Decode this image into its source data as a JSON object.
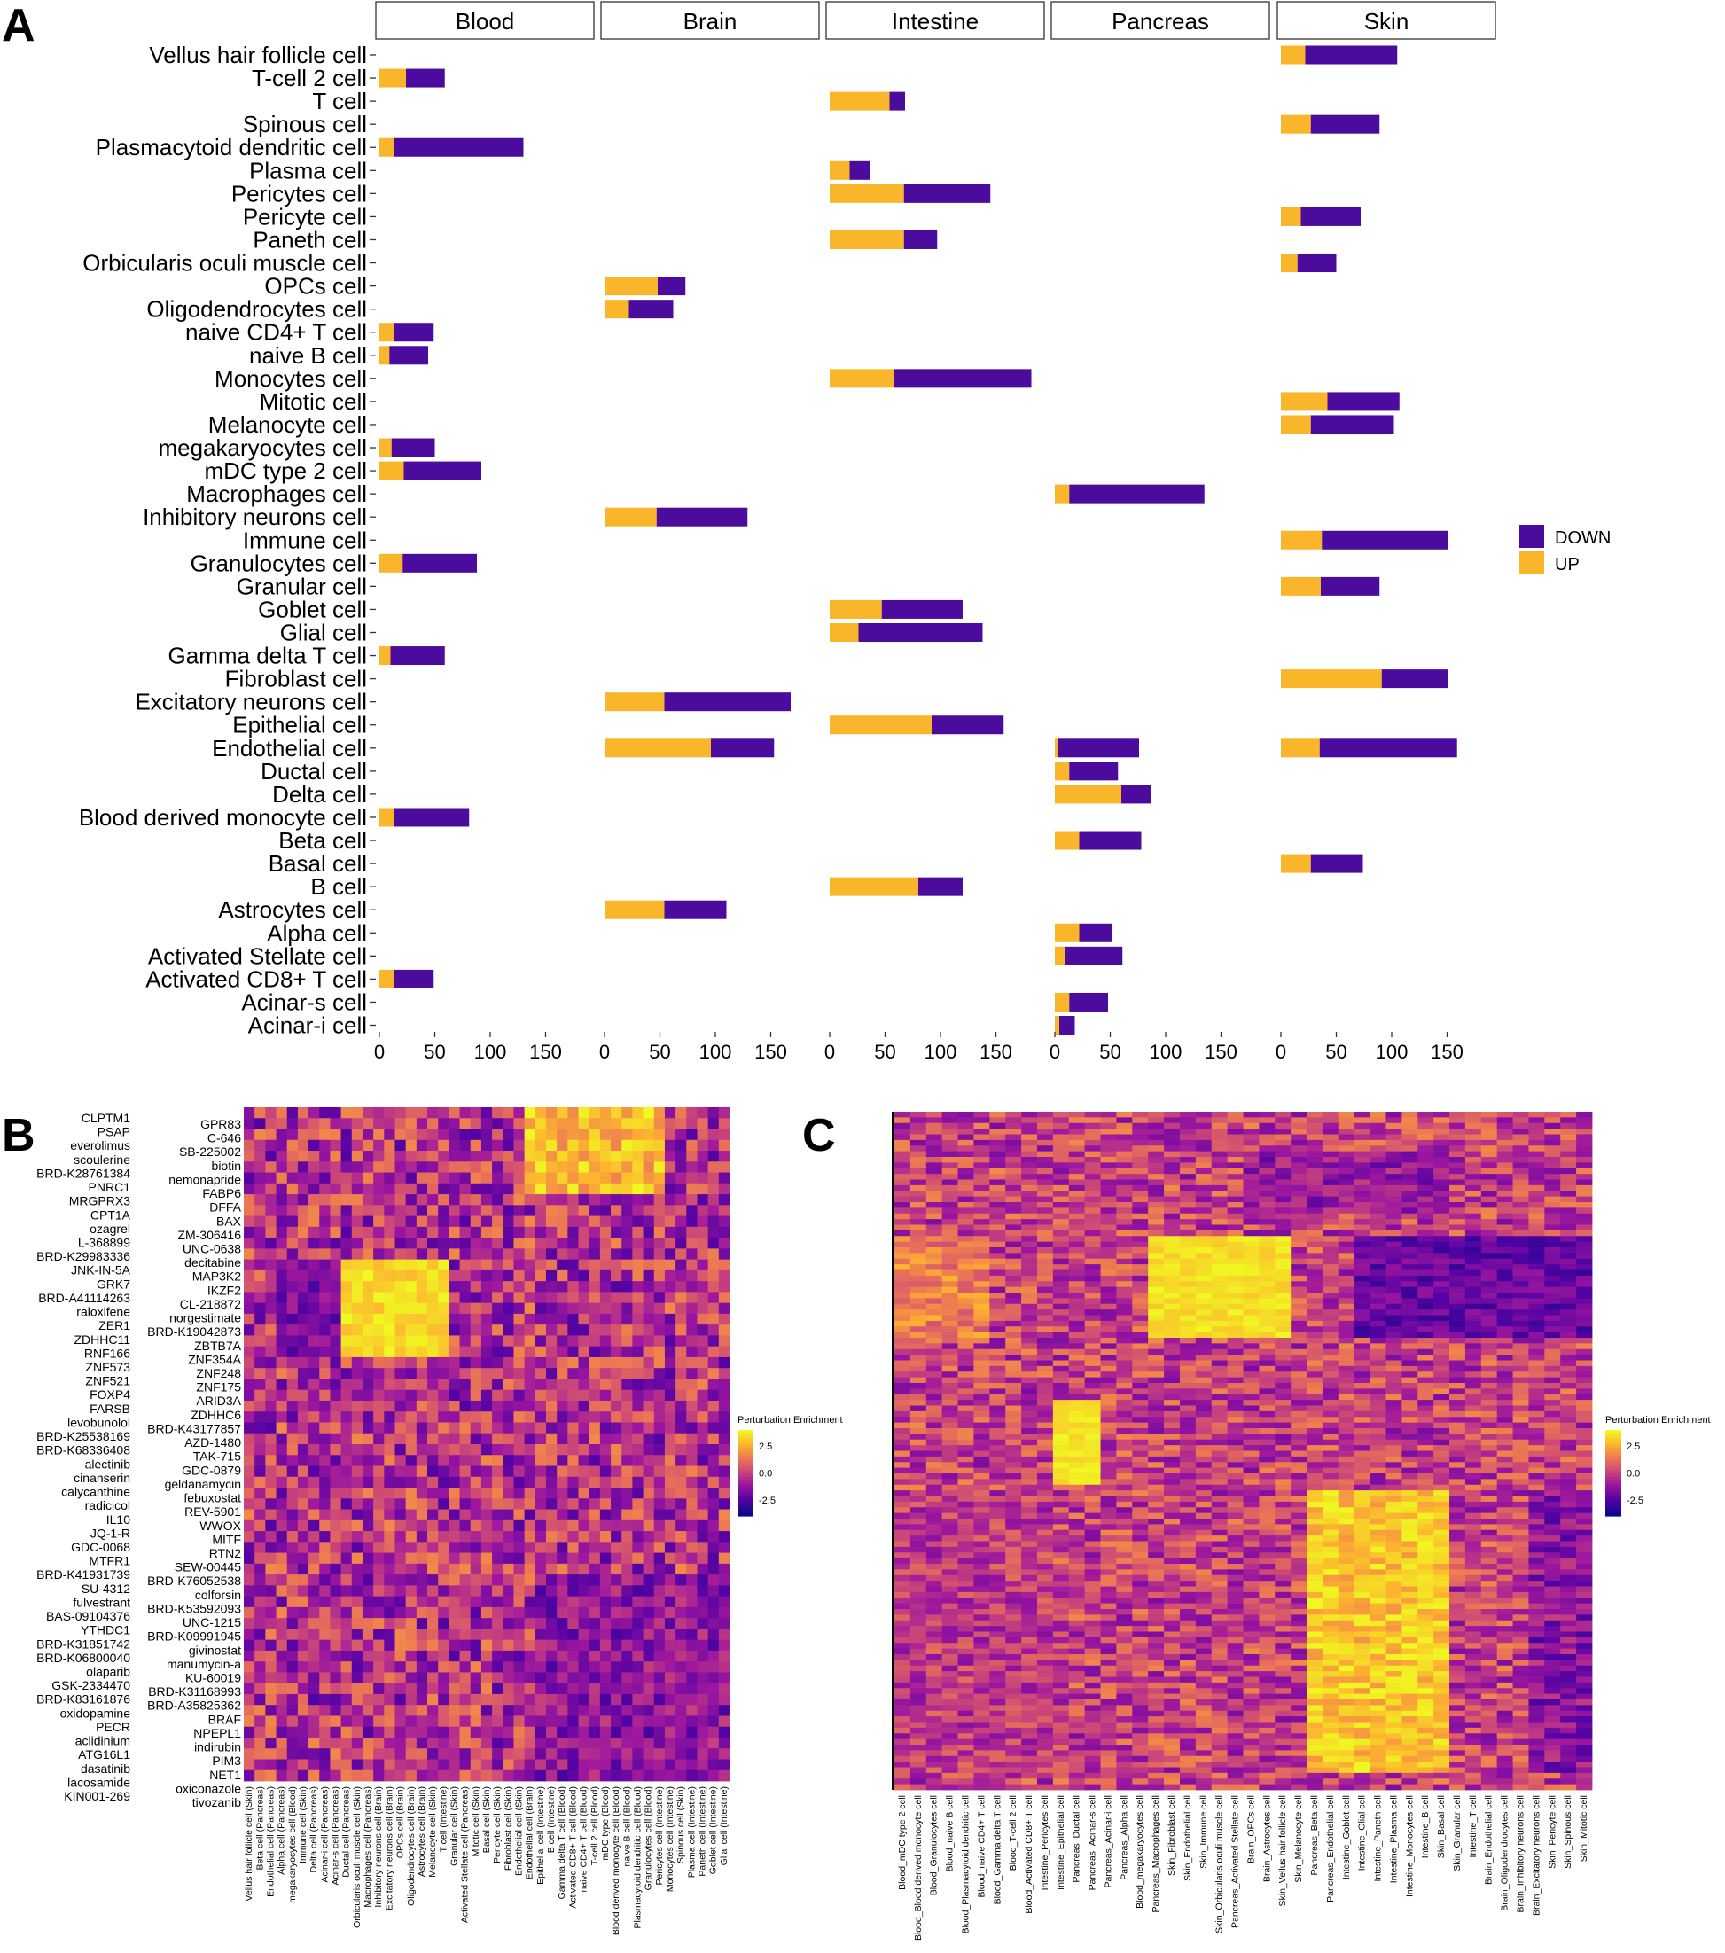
{
  "panel_letters": {
    "a": "A",
    "b": "B",
    "c": "C"
  },
  "chart_data": [
    {
      "type": "bar",
      "orientation": "horizontal",
      "stacked": true,
      "facets": [
        "Blood",
        "Brain",
        "Intestine",
        "Pancreas",
        "Skin"
      ],
      "categories": [
        "Vellus hair follicle cell",
        "T-cell 2 cell",
        "T cell",
        "Spinous cell",
        "Plasmacytoid dendritic cell",
        "Plasma cell",
        "Pericytes cell",
        "Pericyte cell",
        "Paneth cell",
        "Orbicularis oculi muscle cell",
        "OPCs cell",
        "Oligodendrocytes cell",
        "naive CD4+ T cell",
        "naive B cell",
        "Monocytes cell",
        "Mitotic cell",
        "Melanocyte cell",
        "megakaryocytes cell",
        "mDC type 2 cell",
        "Macrophages cell",
        "Inhibitory neurons cell",
        "Immune cell",
        "Granulocytes cell",
        "Granular cell",
        "Goblet cell",
        "Glial cell",
        "Gamma delta T cell",
        "Fibroblast cell",
        "Excitatory neurons cell",
        "Epithelial cell",
        "Endothelial cell",
        "Ductal cell",
        "Delta cell",
        "Blood derived monocyte cell",
        "Beta cell",
        "Basal cell",
        "B cell",
        "Astrocytes cell",
        "Alpha cell",
        "Activated Stellate cell",
        "Activated CD8+ T cell",
        "Acinar-s cell",
        "Acinar-i cell"
      ],
      "xlim": [
        0,
        180
      ],
      "x_ticks": [
        "0",
        "50",
        "100",
        "150"
      ],
      "x_tick_values": [
        0,
        50,
        100,
        150
      ],
      "legend": {
        "entries": [
          "DOWN",
          "UP"
        ],
        "placement": "right"
      },
      "colors": {
        "UP": "#F9B62A",
        "DOWN": "#4B0B9C"
      },
      "series": [
        {
          "name": "UP",
          "values_by_facet": {
            "Blood": {
              "T-cell 2 cell": 24,
              "Plasmacytoid dendritic cell": 13,
              "naive CD4+ T cell": 13,
              "naive B cell": 9,
              "megakaryocytes cell": 11,
              "mDC type 2 cell": 22,
              "Granulocytes cell": 21,
              "Gamma delta T cell": 10,
              "Blood derived monocyte cell": 13,
              "Activated CD8+ T cell": 13
            },
            "Brain": {
              "OPCs cell": 48,
              "Oligodendrocytes cell": 22,
              "Inhibitory neurons cell": 47,
              "Excitatory neurons cell": 54,
              "Endothelial cell": 96,
              "Astrocytes cell": 54
            },
            "Intestine": {
              "T cell": 54,
              "Plasma cell": 18,
              "Pericytes cell": 67,
              "Paneth cell": 67,
              "Monocytes cell": 58,
              "Goblet cell": 47,
              "Glial cell": 26,
              "Epithelial cell": 92,
              "B cell": 80
            },
            "Pancreas": {
              "Macrophages cell": 13,
              "Endothelial cell": 3,
              "Ductal cell": 13,
              "Delta cell": 60,
              "Beta cell": 22,
              "Alpha cell": 22,
              "Activated Stellate cell": 9,
              "Acinar-s cell": 13,
              "Acinar-i cell": 4
            },
            "Skin": {
              "Vellus hair follicle cell": 22,
              "Spinous cell": 27,
              "Pericyte cell": 18,
              "Orbicularis oculi muscle cell": 15,
              "Mitotic cell": 42,
              "Melanocyte cell": 27,
              "Immune cell": 37,
              "Granular cell": 36,
              "Fibroblast cell": 91,
              "Endothelial cell": 35,
              "Basal cell": 27
            }
          }
        },
        {
          "name": "DOWN",
          "values_by_facet": {
            "Blood": {
              "T-cell 2 cell": 35,
              "Plasmacytoid dendritic cell": 117,
              "naive CD4+ T cell": 36,
              "naive B cell": 35,
              "megakaryocytes cell": 39,
              "mDC type 2 cell": 70,
              "Granulocytes cell": 67,
              "Gamma delta T cell": 49,
              "Blood derived monocyte cell": 68,
              "Activated CD8+ T cell": 36
            },
            "Brain": {
              "OPCs cell": 25,
              "Oligodendrocytes cell": 40,
              "Inhibitory neurons cell": 82,
              "Excitatory neurons cell": 114,
              "Endothelial cell": 57,
              "Astrocytes cell": 56
            },
            "Intestine": {
              "T cell": 14,
              "Plasma cell": 18,
              "Pericytes cell": 78,
              "Paneth cell": 30,
              "Monocytes cell": 124,
              "Goblet cell": 73,
              "Glial cell": 112,
              "Epithelial cell": 65,
              "B cell": 40
            },
            "Pancreas": {
              "Macrophages cell": 122,
              "Endothelial cell": 73,
              "Ductal cell": 44,
              "Delta cell": 27,
              "Beta cell": 56,
              "Alpha cell": 30,
              "Activated Stellate cell": 52,
              "Acinar-s cell": 35,
              "Acinar-i cell": 14
            },
            "Skin": {
              "Vellus hair follicle cell": 83,
              "Spinous cell": 62,
              "Pericyte cell": 54,
              "Orbicularis oculi muscle cell": 35,
              "Mitotic cell": 65,
              "Melanocyte cell": 75,
              "Immune cell": 114,
              "Granular cell": 53,
              "Fibroblast cell": 60,
              "Endothelial cell": 124,
              "Basal cell": 47
            }
          }
        }
      ]
    },
    {
      "type": "heatmap",
      "legend_title": "Perturbation Enrichment",
      "colorbar_ticks": [
        "2.5",
        "0.0",
        "-2.5"
      ],
      "colorbar_tick_values": [
        2.5,
        0.0,
        -2.5
      ],
      "value_range": [
        -4,
        4
      ],
      "row_labels_left": [
        "CLPTM1",
        "PSAP",
        "everolimus",
        "scoulerine",
        "BRD-K28761384",
        "PNRC1",
        "MRGPRX3",
        "CPT1A",
        "ozagrel",
        "L-368899",
        "BRD-K29983336",
        "JNK-IN-5A",
        "GRK7",
        "BRD-A41114263",
        "raloxifene",
        "ZER1",
        "ZDHHC11",
        "RNF166",
        "ZNF573",
        "ZNF521",
        "FOXP4",
        "FARSB",
        "levobunolol",
        "BRD-K25538169",
        "BRD-K68336408",
        "alectinib",
        "cinanserin",
        "calycanthine",
        "radicicol",
        "IL10",
        "JQ-1-R",
        "GDC-0068",
        "MTFR1",
        "BRD-K41931739",
        "SU-4312",
        "fulvestrant",
        "BAS-09104376",
        "YTHDC1",
        "BRD-K31851742",
        "BRD-K06800040",
        "olaparib",
        "GSK-2334470",
        "BRD-K83161876",
        "oxidopamine",
        "PECR",
        "aclidinium",
        "ATG16L1",
        "dasatinib",
        "lacosamide",
        "KIN001-269"
      ],
      "row_labels_right": [
        "GPR83",
        "C-646",
        "SB-225002",
        "biotin",
        "nemonapride",
        "FABP6",
        "DFFA",
        "BAX",
        "ZM-306416",
        "UNC-0638",
        "decitabine",
        "MAP3K2",
        "IKZF2",
        "CL-218872",
        "norgestimate",
        "BRD-K19042873",
        "ZBTB7A",
        "ZNF354A",
        "ZNF248",
        "ZNF175",
        "ARID3A",
        "ZDHHC6",
        "BRD-K43177857",
        "AZD-1480",
        "TAK-715",
        "GDC-0879",
        "geldanamycin",
        "febuxostat",
        "REV-5901",
        "WWOX",
        "MITF",
        "RTN2",
        "SEW-00445",
        "BRD-K76052538",
        "colforsin",
        "BRD-K53592093",
        "UNC-1215",
        "BRD-K09991945",
        "givinostat",
        "manumycin-a",
        "KU-60019",
        "BRD-K31168993",
        "BRD-A35825362",
        "BRAF",
        "NPEPL1",
        "indirubin",
        "PIM3",
        "NET1",
        "oxiconazole",
        "tivozanib"
      ],
      "col_labels": [
        "Vellus hair follicle cell (Skin)",
        "Beta cell (Pancreas)",
        "Endothelial cell (Pancreas)",
        "Alpha cell (Pancreas)",
        "megakaryocytes cell (Blood)",
        "Immune cell (Skin)",
        "Delta cell (Pancreas)",
        "Acinar-i cell (Pancreas)",
        "Acinar-s cell (Pancreas)",
        "Ductal cell (Pancreas)",
        "Orbicularis oculi muscle cell (Skin)",
        "Macrophages cell (Pancreas)",
        "Inhibitory neurons cell (Brain)",
        "Excitatory neurons cell (Brain)",
        "OPCs cell (Brain)",
        "Oligodendrocytes cell (Brain)",
        "Astrocytes cell (Brain)",
        "Melanocyte cell (Skin)",
        "T cell (Intestine)",
        "Granular cell (Skin)",
        "Activated Stellate cell (Pancreas)",
        "Mitotic cell (Skin)",
        "Basal cell (Skin)",
        "Pericyte cell (Skin)",
        "Fibroblast cell (Skin)",
        "Endothelial cell (Skin)",
        "Endothelial cell (Brain)",
        "Epithelial cell (Intestine)",
        "B cell (Intestine)",
        "Gamma delta T cell (Blood)",
        "Activated CD8+ T cell (Blood)",
        "naive CD4+ T cell (Blood)",
        "T-cell 2 cell (Blood)",
        "mDC type (Blood)",
        "Blood derived monocyte cell (Blood)",
        "naive B cell (Blood)",
        "Plasmacytoid dendritic cell (Blood)",
        "Granulocytes cell (Blood)",
        "Pericytes cell (Intestine)",
        "Monocytes cell (Intestine)",
        "Spinous cell (Skin)",
        "Plasma cell (Intestine)",
        "Paneth cell (Intestine)",
        "Goblet cell (Intestine)",
        "Glial cell (Intestine)"
      ]
    },
    {
      "type": "heatmap",
      "legend_title": "Perturbation Enrichment",
      "colorbar_ticks": [
        "2.5",
        "0.0",
        "-2.5"
      ],
      "colorbar_tick_values": [
        2.5,
        0.0,
        -2.5
      ],
      "value_range": [
        -4,
        4
      ],
      "col_labels": [
        "Blood_mDC type 2 cell",
        "Blood_Blood derived monocyte cell",
        "Blood_Granulocytes cell",
        "Blood_naive B cell",
        "Blood_Plasmacytoid dendritic cell",
        "Blood_naive CD4+ T cell",
        "Blood_Gamma delta T cell",
        "Blood_T-cell 2 cell",
        "Blood_Activated CD8+ T cell",
        "Intestine_Pericytes cell",
        "Intestine_Epithelial cell",
        "Pancreas_Ductal cell",
        "Pancreas_Acinar-s cell",
        "Pancreas_Acinar-i cell",
        "Pancreas_Alpha cell",
        "Blood_megakaryocytes cell",
        "Pancreas_Macrophages cell",
        "Skin_Fibroblast cell",
        "Skin_Endothelial cell",
        "Skin_Immune cell",
        "Skin_Orbicularis oculi muscle cell",
        "Pancreas_Activated Stellate cell",
        "Brain_OPCs cell",
        "Brain_Astrocytes cell",
        "Skin_Vellus hair follicle cell",
        "Skin_Melanocyte cell",
        "Pancreas_Beta cell",
        "Pancreas_Endothelial cell",
        "Intestine_Goblet cell",
        "Intestine_Glial cell",
        "Intestine_Paneth cell",
        "Intestine_Plasma cell",
        "Intestine_Monocytes cell",
        "Intestine_B cell",
        "Skin_Basal cell",
        "Skin_Granular cell",
        "Intestine_T cell",
        "Brain_Endothelial cell",
        "Brain_Oligodendrocytes cell",
        "Brain_Inhibitory neurons cell",
        "Brain_Excitatory neurons cell",
        "Skin_Pericyte cell",
        "Skin_Spinous cell",
        "Skin_Mitotic cell"
      ]
    }
  ]
}
